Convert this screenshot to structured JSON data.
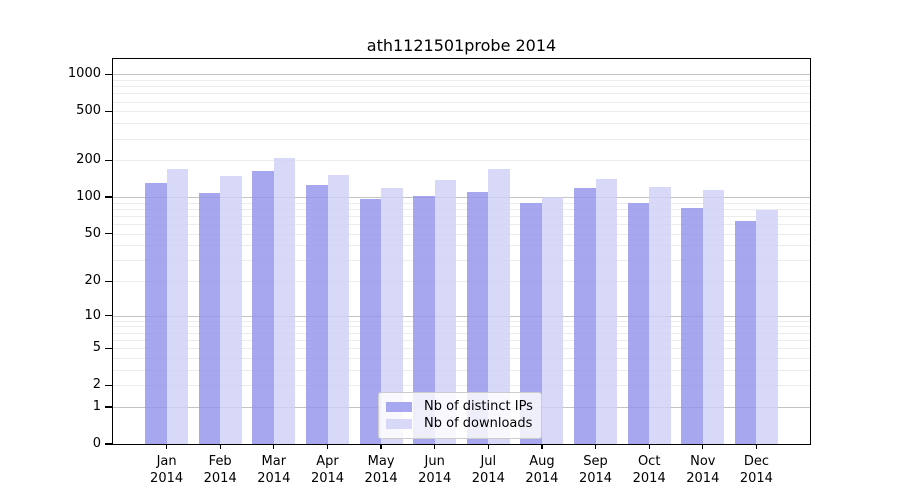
{
  "title": "ath1121501probe 2014",
  "colors": {
    "ips_bar": "rgba(148,148,236,0.82)",
    "downloads_bar": "rgba(208,208,247,0.82)",
    "ips_swatch": "#a8a8f0",
    "downloads_swatch": "#d8d8f8",
    "grid_major": "#c4c4c4",
    "grid_minor": "#ececec",
    "axis": "#000000"
  },
  "legend": {
    "items": [
      {
        "label": "Nb of distinct IPs",
        "color_key": "ips_swatch"
      },
      {
        "label": "Nb of downloads",
        "color_key": "downloads_swatch"
      }
    ]
  },
  "chart_data": {
    "type": "bar",
    "title": "ath1121501probe 2014",
    "categories": [
      {
        "month": "Jan",
        "year": "2014"
      },
      {
        "month": "Feb",
        "year": "2014"
      },
      {
        "month": "Mar",
        "year": "2014"
      },
      {
        "month": "Apr",
        "year": "2014"
      },
      {
        "month": "May",
        "year": "2014"
      },
      {
        "month": "Jun",
        "year": "2014"
      },
      {
        "month": "Jul",
        "year": "2014"
      },
      {
        "month": "Aug",
        "year": "2014"
      },
      {
        "month": "Sep",
        "year": "2014"
      },
      {
        "month": "Oct",
        "year": "2014"
      },
      {
        "month": "Nov",
        "year": "2014"
      },
      {
        "month": "Dec",
        "year": "2014"
      }
    ],
    "series": [
      {
        "name": "Nb of distinct IPs",
        "values": [
          130,
          108,
          165,
          126,
          97,
          103,
          111,
          89,
          118,
          90,
          81,
          64
        ]
      },
      {
        "name": "Nb of downloads",
        "values": [
          170,
          150,
          210,
          152,
          118,
          137,
          170,
          100,
          142,
          120,
          115,
          78
        ]
      }
    ],
    "yticks": [
      1000,
      500,
      200,
      100,
      50,
      20,
      10,
      5,
      2,
      1,
      0
    ],
    "scale": "log10(1+x)",
    "ylim": [
      0,
      1260
    ],
    "grid": true,
    "legend_position": "bottom-center",
    "xlabel": "",
    "ylabel": ""
  }
}
